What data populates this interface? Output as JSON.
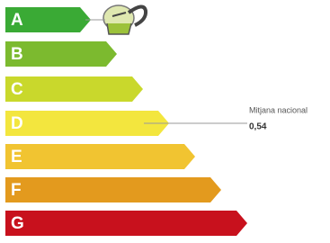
{
  "classes": [
    {
      "label": "A",
      "color": "#3aaa35"
    },
    {
      "label": "B",
      "color": "#7cba2f"
    },
    {
      "label": "C",
      "color": "#c9d82c"
    },
    {
      "label": "D",
      "color": "#f3e63e"
    },
    {
      "label": "E",
      "color": "#f1c431"
    },
    {
      "label": "F",
      "color": "#e39a1e"
    },
    {
      "label": "G",
      "color": "#c8111d"
    }
  ],
  "annotation": {
    "label": "Mitjana nacional",
    "value": "0,54"
  }
}
